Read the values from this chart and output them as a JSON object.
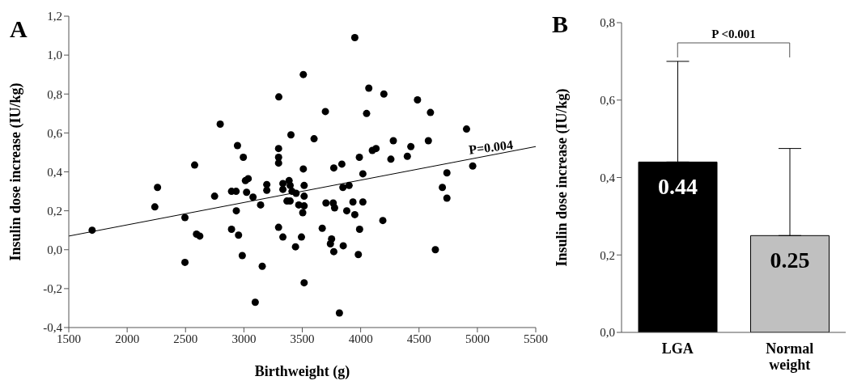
{
  "chart_data": [
    {
      "type": "scatter",
      "xlabel": "Birthweight (g)",
      "ylabel": "Insulin dose increase (IU/kg)",
      "annotations": [
        "A",
        "P=0.004"
      ],
      "xlim": [
        1500,
        5500
      ],
      "xticks": [
        1500,
        2000,
        2500,
        3000,
        3500,
        4000,
        4500,
        5000,
        5500
      ],
      "ylim": [
        -0.4,
        1.2
      ],
      "yticks": [
        {
          "value": -0.4,
          "label": "-0,4"
        },
        {
          "value": -0.2,
          "label": "-0,2"
        },
        {
          "value": 0,
          "label": "0,0"
        },
        {
          "value": 0.2,
          "label": "0,2"
        },
        {
          "value": 0.4,
          "label": "0,4"
        },
        {
          "value": 0.6,
          "label": "0,6"
        },
        {
          "value": 0.8,
          "label": "0,8"
        },
        {
          "value": 1.0,
          "label": "1,0"
        },
        {
          "value": 1.2,
          "label": "1,2"
        }
      ],
      "series": [
        {
          "type": "scatter",
          "color": "#000000",
          "marker": "circle",
          "x": [
            1700,
            2237,
            2260,
            2495,
            2495,
            2578,
            2594,
            2622,
            2749,
            2797,
            2894,
            2894,
            2933,
            2945,
            2935,
            2954,
            2995,
            2986,
            3013,
            3037,
            3023,
            3078,
            3097,
            3143,
            3157,
            3196,
            3196,
            3299,
            3297,
            3297,
            3297,
            3297,
            3334,
            3334,
            3334,
            3403,
            3387,
            3396,
            3369,
            3396,
            3412,
            3442,
            3447,
            3470,
            3504,
            3493,
            3509,
            3509,
            3516,
            3516,
            3516,
            3516,
            3950,
            4070,
            4199,
            4487,
            3698,
            4051,
            4598,
            4907,
            3601,
            4280,
            4580,
            4100,
            4132,
            4430,
            3989,
            4259,
            4400,
            3770,
            3839,
            4019,
            4960,
            4739,
            4700,
            4739,
            3848,
            3901,
            3703,
            3765,
            3777,
            3934,
            4019,
            3881,
            3950,
            4190,
            3671,
            3991,
            3751,
            3741,
            3851,
            3770,
            3980,
            4640,
            3818
          ],
          "values": [
            0.1,
            0.22,
            0.32,
            0.165,
            -0.065,
            0.435,
            0.08,
            0.07,
            0.275,
            0.645,
            0.105,
            0.3,
            0.3,
            0.535,
            0.2,
            0.075,
            0.475,
            -0.03,
            0.355,
            0.365,
            0.295,
            0.27,
            -0.27,
            0.23,
            -0.085,
            0.335,
            0.305,
            0.785,
            0.52,
            0.475,
            0.445,
            0.115,
            0.34,
            0.31,
            0.065,
            0.59,
            0.355,
            0.33,
            0.25,
            0.25,
            0.3,
            0.015,
            0.29,
            0.23,
            0.19,
            0.065,
            0.9,
            0.415,
            0.33,
            0.275,
            0.225,
            -0.17,
            1.09,
            0.83,
            0.8,
            0.77,
            0.71,
            0.7,
            0.705,
            0.62,
            0.57,
            0.56,
            0.56,
            0.51,
            0.52,
            0.53,
            0.475,
            0.465,
            0.48,
            0.42,
            0.44,
            0.39,
            0.43,
            0.395,
            0.32,
            0.265,
            0.32,
            0.33,
            0.24,
            0.24,
            0.215,
            0.245,
            0.245,
            0.2,
            0.18,
            0.15,
            0.11,
            0.105,
            0.055,
            0.03,
            0.02,
            -0.01,
            -0.025,
            0.0,
            -0.325
          ]
        },
        {
          "type": "line",
          "color": "#000000",
          "x": [
            1500,
            5500
          ],
          "values": [
            0.07,
            0.53
          ]
        }
      ]
    },
    {
      "type": "bar",
      "ylabel": "Insulin dose increase (IU/kg)",
      "annotations": [
        "B",
        "P <0.001"
      ],
      "categories": [
        "LGA",
        "Normal weight"
      ],
      "values": [
        0.44,
        0.25
      ],
      "colors": [
        "#000000",
        "#c0c0c0"
      ],
      "errors": [
        [
          0.44,
          0.7
        ],
        [
          0.25,
          0.475
        ]
      ],
      "data_labels": true,
      "ylim": [
        0,
        0.8
      ],
      "yticks": [
        {
          "value": 0,
          "label": "0,0"
        },
        {
          "value": 0.2,
          "label": "0,2"
        },
        {
          "value": 0.4,
          "label": "0,4"
        },
        {
          "value": 0.6,
          "label": "0,6"
        },
        {
          "value": 0.8,
          "label": "0,8"
        }
      ]
    }
  ]
}
